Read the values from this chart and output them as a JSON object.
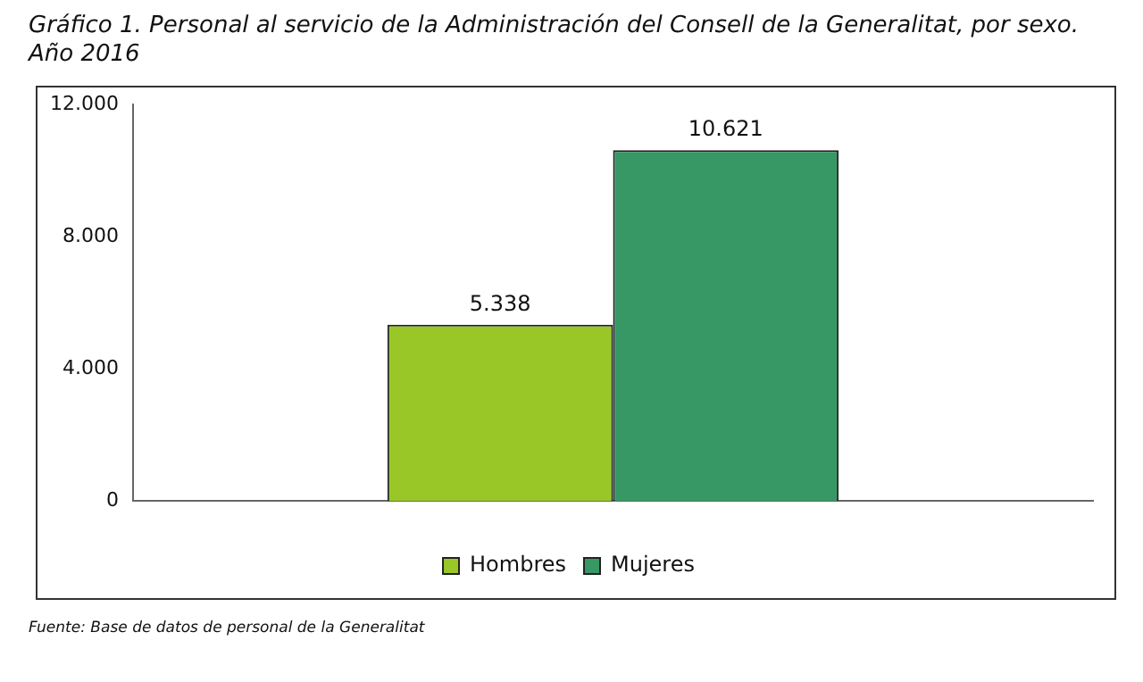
{
  "chart_data": {
    "type": "bar",
    "title": "Gráfico 1. Personal al servicio de la Administración del Consell de la Generalitat, por sexo. Año 2016",
    "categories": [
      null
    ],
    "series": [
      {
        "name": "Hombres",
        "color": "#99c727",
        "values": [
          5338
        ],
        "value_labels": [
          "5.338"
        ]
      },
      {
        "name": "Mujeres",
        "color": "#379866",
        "values": [
          10621
        ],
        "value_labels": [
          "10.621"
        ]
      }
    ],
    "ylim": [
      0,
      12000
    ],
    "yticks": [
      {
        "value": 0,
        "label": "0"
      },
      {
        "value": 4000,
        "label": "4.000"
      },
      {
        "value": 8000,
        "label": "8.000"
      },
      {
        "value": 12000,
        "label": "12.000"
      }
    ],
    "grid": false,
    "legend": "bottom",
    "annotations": [
      "Fuente: Base de datos de personal de la Generalitat"
    ]
  }
}
